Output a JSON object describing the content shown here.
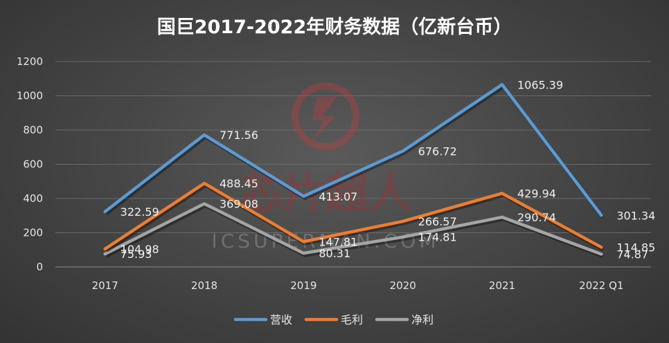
{
  "chart_data": {
    "type": "line",
    "title": "国巨2017-2022年财务数据（亿新台币）",
    "categories": [
      "2017",
      "2018",
      "2019",
      "2020",
      "2021",
      "2022 Q1"
    ],
    "ylim": [
      0,
      1200
    ],
    "yticks": [
      0,
      200,
      400,
      600,
      800,
      1000,
      1200
    ],
    "grid": true,
    "legend_position": "bottom",
    "series": [
      {
        "name": "营收",
        "color": "#5b9bd5",
        "values": [
          322.59,
          771.56,
          413.07,
          676.72,
          1065.39,
          301.34
        ],
        "labels": [
          "322.59",
          "771.56",
          "413.07",
          "676.72",
          "1065.39",
          "301.34"
        ]
      },
      {
        "name": "毛利",
        "color": "#ed7d31",
        "values": [
          104.98,
          488.45,
          147.81,
          266.57,
          429.94,
          114.85
        ],
        "labels": [
          "104.98",
          "488.45",
          "147.81",
          "266.57",
          "429.94",
          "114.85"
        ]
      },
      {
        "name": "净利",
        "color": "#a5a5a5",
        "values": [
          75.93,
          369.08,
          80.31,
          174.81,
          290.74,
          74.87
        ],
        "labels": [
          "75.93",
          "369.08",
          "80.31",
          "174.81",
          "290.74",
          "74.87"
        ]
      }
    ]
  },
  "watermark": {
    "text_cn": "芯片超人",
    "text_en": "ICSUPERMAN.COM"
  }
}
